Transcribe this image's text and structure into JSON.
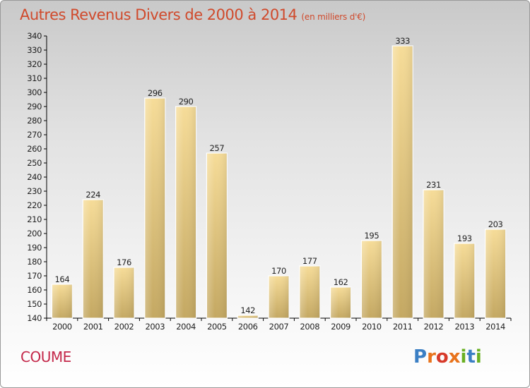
{
  "header": {
    "title": "Autres Revenus Divers de 2000 à 2014",
    "unit": "(en milliers d'€)"
  },
  "footer": {
    "commune": "COUME",
    "logo_text": "Proxiti",
    "logo_colors": [
      "#3b7fc4",
      "#e8731c",
      "#d73a2a",
      "#e8731c",
      "#6ab023",
      "#3b7fc4",
      "#6ab023"
    ]
  },
  "chart_data": {
    "type": "bar",
    "title": "Autres Revenus Divers de 2000 à 2014",
    "subtitle": "(en milliers d'€)",
    "xlabel": "",
    "ylabel": "",
    "categories": [
      "2000",
      "2001",
      "2002",
      "2003",
      "2004",
      "2005",
      "2006",
      "2007",
      "2008",
      "2009",
      "2010",
      "2011",
      "2012",
      "2013",
      "2014"
    ],
    "values": [
      164,
      224,
      176,
      296,
      290,
      257,
      142,
      170,
      177,
      162,
      195,
      333,
      231,
      193,
      203
    ],
    "ylim": [
      140,
      340
    ],
    "yticks": [
      140,
      150,
      160,
      170,
      180,
      190,
      200,
      210,
      220,
      230,
      240,
      250,
      260,
      270,
      280,
      290,
      300,
      310,
      320,
      330,
      340
    ],
    "grid": false,
    "legend": "none",
    "bar_color": "#e0c27a",
    "axis_color": "#000000"
  }
}
